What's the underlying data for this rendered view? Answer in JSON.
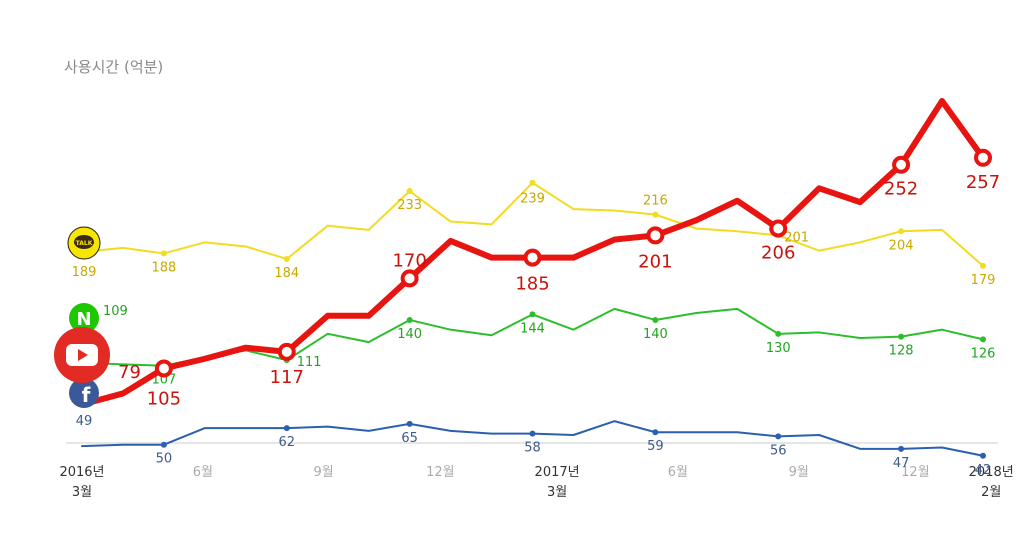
{
  "chart_data": {
    "type": "line",
    "title": "사용시간 (억분)",
    "x_ticks": [
      {
        "line1": "2016년",
        "line2": "3월",
        "highlight": true
      },
      {
        "line1": "6월",
        "line2": "",
        "highlight": false
      },
      {
        "line1": "9월",
        "line2": "",
        "highlight": false
      },
      {
        "line1": "12월",
        "line2": "",
        "highlight": false
      },
      {
        "line1": "2017년",
        "line2": "3월",
        "highlight": true
      },
      {
        "line1": "6월",
        "line2": "",
        "highlight": false
      },
      {
        "line1": "9월",
        "line2": "",
        "highlight": false
      },
      {
        "line1": "12월",
        "line2": "",
        "highlight": false
      },
      {
        "line1": "2018년",
        "line2": "2월",
        "highlight": true
      }
    ],
    "ylim": [
      0,
      300
    ],
    "grid": false,
    "series": [
      {
        "icon": "kakaotalk-icon",
        "icon_text": "TALK",
        "color": "#f2dc20",
        "label_color": "#c9a800",
        "values": [
          189,
          192,
          188,
          196,
          193,
          184,
          208,
          205,
          233,
          211,
          209,
          239,
          220,
          219,
          216,
          206,
          204,
          201,
          190,
          196,
          204,
          205,
          179
        ],
        "labels": {
          "0": "189",
          "2": "188",
          "5": "184",
          "8": "233",
          "11": "239",
          "14": "216",
          "17": "201",
          "20": "204",
          "22": "179"
        }
      },
      {
        "icon": "naver-icon",
        "icon_text": "N",
        "color": "#2cbe2c",
        "label_color": "#23a323",
        "values": [
          109,
          108,
          107,
          113,
          118,
          111,
          130,
          124,
          140,
          133,
          129,
          144,
          133,
          148,
          140,
          145,
          148,
          130,
          131,
          127,
          128,
          133,
          126
        ],
        "labels": {
          "0": "109",
          "2": "107",
          "5": "111",
          "8": "140",
          "11": "144",
          "14": "140",
          "17": "130",
          "20": "128",
          "22": "126"
        }
      },
      {
        "icon": "youtube-icon",
        "icon_text": "",
        "color": "#e81410",
        "label_color": "#c8140c",
        "values": [
          79,
          87,
          105,
          112,
          120,
          117,
          143,
          143,
          170,
          197,
          185,
          185,
          185,
          198,
          201,
          212,
          226,
          206,
          235,
          225,
          252,
          298,
          257
        ],
        "labels": {
          "0": "79",
          "2": "105",
          "5": "117",
          "8": "170",
          "11": "185",
          "14": "201",
          "17": "206",
          "20": "252",
          "22": "257"
        },
        "markers": [
          2,
          5,
          8,
          11,
          14,
          17,
          20,
          22
        ]
      },
      {
        "icon": "facebook-icon",
        "icon_text": "f",
        "color": "#2d5fb0",
        "label_color": "#3d5a8c",
        "values": [
          49,
          50,
          50,
          62,
          62,
          62,
          63,
          60,
          65,
          60,
          58,
          58,
          57,
          67,
          59,
          59,
          59,
          56,
          57,
          47,
          47,
          48,
          42
        ],
        "labels": {
          "0": "49",
          "2": "50",
          "5": "62",
          "8": "65",
          "11": "58",
          "14": "59",
          "17": "56",
          "20": "47",
          "22": "42"
        }
      }
    ]
  }
}
